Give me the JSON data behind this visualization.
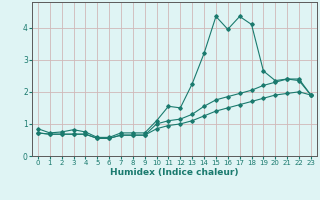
{
  "xlabel": "Humidex (Indice chaleur)",
  "x_values": [
    0,
    1,
    2,
    3,
    4,
    5,
    6,
    7,
    8,
    9,
    10,
    11,
    12,
    13,
    14,
    15,
    16,
    17,
    18,
    19,
    20,
    21,
    22,
    23
  ],
  "line1_y": [
    0.85,
    0.72,
    0.75,
    0.82,
    0.75,
    0.58,
    0.58,
    0.72,
    0.72,
    0.72,
    1.1,
    1.55,
    1.5,
    2.25,
    3.2,
    4.35,
    3.95,
    4.35,
    4.1,
    2.65,
    2.35,
    2.4,
    2.35,
    1.9
  ],
  "line2_y": [
    0.72,
    0.68,
    0.68,
    0.68,
    0.68,
    0.55,
    0.55,
    0.65,
    0.65,
    0.65,
    1.0,
    1.1,
    1.15,
    1.3,
    1.55,
    1.75,
    1.85,
    1.95,
    2.05,
    2.2,
    2.3,
    2.4,
    2.4,
    1.9
  ],
  "line3_y": [
    0.72,
    0.68,
    0.68,
    0.68,
    0.68,
    0.55,
    0.55,
    0.65,
    0.65,
    0.65,
    0.85,
    0.95,
    1.0,
    1.1,
    1.25,
    1.4,
    1.5,
    1.6,
    1.7,
    1.8,
    1.9,
    1.95,
    2.0,
    1.9
  ],
  "line_color": "#1a7a6e",
  "bg_color": "#dff4f4",
  "grid_color": "#d0b8b8",
  "spine_color": "#5a5a5a",
  "xlim": [
    -0.5,
    23.5
  ],
  "ylim": [
    0,
    4.8
  ],
  "yticks": [
    0,
    1,
    2,
    3,
    4
  ],
  "xticks": [
    0,
    1,
    2,
    3,
    4,
    5,
    6,
    7,
    8,
    9,
    10,
    11,
    12,
    13,
    14,
    15,
    16,
    17,
    18,
    19,
    20,
    21,
    22,
    23
  ],
  "tick_fontsize": 5.0,
  "xlabel_fontsize": 6.5
}
